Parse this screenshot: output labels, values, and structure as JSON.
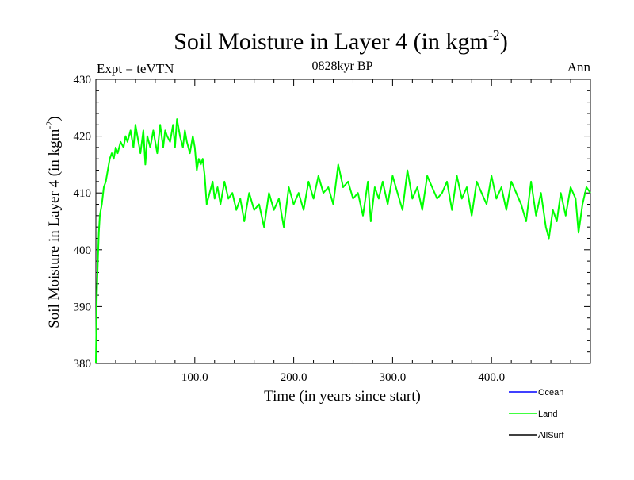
{
  "chart_data": {
    "type": "line",
    "title": "Soil Moisture in Layer 4 (in kgm",
    "title_superscript": "-2",
    "title_suffix": ")",
    "subtitle": "0828kyr BP",
    "left_label": "Expt = teVTN",
    "right_label": "Ann",
    "xlabel": "Time (in years since start)",
    "ylabel": "Soil Moisture in Layer 4 (in kgm",
    "ylabel_superscript": "-2",
    "ylabel_suffix": ")",
    "xlim": [
      0,
      500
    ],
    "ylim": [
      380,
      430
    ],
    "x_ticks": [
      {
        "value": 100,
        "label": "100.0"
      },
      {
        "value": 200,
        "label": "200.0"
      },
      {
        "value": 300,
        "label": "300.0"
      },
      {
        "value": 400,
        "label": "400.0"
      }
    ],
    "y_ticks": [
      {
        "value": 380,
        "label": "380"
      },
      {
        "value": 390,
        "label": "390"
      },
      {
        "value": 400,
        "label": "400"
      },
      {
        "value": 410,
        "label": "410"
      },
      {
        "value": 420,
        "label": "420"
      },
      {
        "value": 430,
        "label": "430"
      }
    ],
    "legend": [
      {
        "name": "Ocean",
        "color": "#0000ff"
      },
      {
        "name": "Land",
        "color": "#00ff00"
      },
      {
        "name": "AllSurf",
        "color": "#000000"
      }
    ],
    "series": [
      {
        "name": "Land",
        "color": "#00ff00",
        "x": [
          0,
          1,
          2,
          3,
          4,
          5,
          6,
          8,
          10,
          12,
          14,
          16,
          18,
          20,
          22,
          25,
          28,
          30,
          32,
          35,
          38,
          40,
          42,
          45,
          48,
          50,
          52,
          55,
          58,
          60,
          62,
          65,
          68,
          70,
          72,
          75,
          78,
          80,
          82,
          85,
          88,
          90,
          92,
          95,
          98,
          100,
          102,
          104,
          106,
          108,
          110,
          112,
          115,
          118,
          120,
          123,
          126,
          130,
          134,
          138,
          142,
          146,
          150,
          155,
          160,
          165,
          170,
          175,
          180,
          185,
          190,
          195,
          200,
          205,
          210,
          215,
          220,
          225,
          230,
          235,
          240,
          245,
          250,
          255,
          260,
          265,
          270,
          275,
          278,
          282,
          286,
          290,
          295,
          300,
          305,
          310,
          315,
          320,
          325,
          330,
          335,
          340,
          345,
          350,
          355,
          360,
          365,
          370,
          375,
          380,
          385,
          390,
          395,
          400,
          405,
          410,
          415,
          420,
          425,
          430,
          435,
          440,
          445,
          450,
          455,
          458,
          462,
          466,
          470,
          475,
          480,
          485,
          488,
          492,
          496,
          500
        ],
        "y": [
          380,
          392,
          398,
          403,
          406,
          407,
          408,
          411,
          412,
          414,
          416,
          417,
          416,
          418,
          417,
          419,
          418,
          420,
          419,
          421,
          418,
          422,
          420,
          417,
          421,
          415,
          420,
          418,
          421,
          419,
          417,
          422,
          418,
          421,
          420,
          419,
          422,
          418,
          423,
          420,
          418,
          421,
          419,
          417,
          420,
          418,
          414,
          416,
          415,
          416,
          413,
          408,
          410,
          412,
          409,
          411,
          408,
          412,
          409,
          410,
          407,
          409,
          405,
          410,
          407,
          408,
          404,
          410,
          407,
          409,
          404,
          411,
          408,
          410,
          407,
          412,
          409,
          413,
          410,
          411,
          408,
          415,
          411,
          412,
          409,
          410,
          406,
          412,
          405,
          411,
          409,
          412,
          408,
          413,
          410,
          407,
          414,
          409,
          411,
          407,
          413,
          411,
          409,
          410,
          412,
          407,
          413,
          409,
          411,
          406,
          412,
          410,
          408,
          413,
          409,
          411,
          407,
          412,
          410,
          408,
          405,
          412,
          406,
          410,
          404,
          402,
          407,
          405,
          410,
          406,
          411,
          409,
          403,
          408,
          411,
          410
        ]
      },
      {
        "name": "Ocean",
        "color": "#0000ff",
        "x": [],
        "y": []
      },
      {
        "name": "AllSurf",
        "color": "#000000",
        "x": [],
        "y": []
      }
    ]
  }
}
